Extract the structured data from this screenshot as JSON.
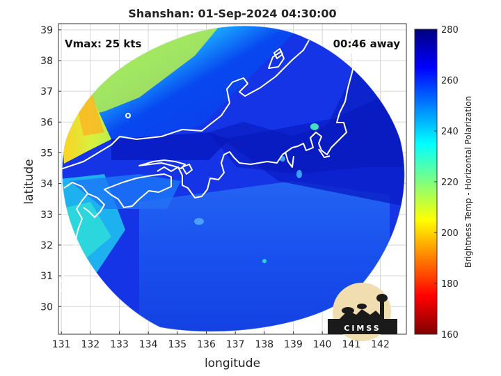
{
  "title": "Shanshan: 01-Sep-2024 04:30:00",
  "vmax_label": "Vmax: 25 kts",
  "away_label": "00:46 away",
  "xlabel": "longitude",
  "ylabel": "latitude",
  "colorbar": {
    "label": "Brightness Temp - Horizontal Polarization",
    "range": [
      160,
      280
    ],
    "ticks": [
      "280",
      "260",
      "240",
      "220",
      "200",
      "180",
      "160"
    ],
    "colormap": "jet"
  },
  "map": {
    "lon_range": [
      130.9,
      142.9
    ],
    "lat_range": [
      29.1,
      39.2
    ],
    "x_ticks": [
      "131",
      "132",
      "133",
      "134",
      "135",
      "136",
      "137",
      "138",
      "139",
      "140",
      "141",
      "142"
    ],
    "y_ticks": [
      "39",
      "38",
      "37",
      "36",
      "35",
      "34",
      "33",
      "32",
      "31",
      "30"
    ],
    "coastline_color": "#ffffff",
    "grid": true
  },
  "logo": {
    "text": "CIMSS"
  }
}
